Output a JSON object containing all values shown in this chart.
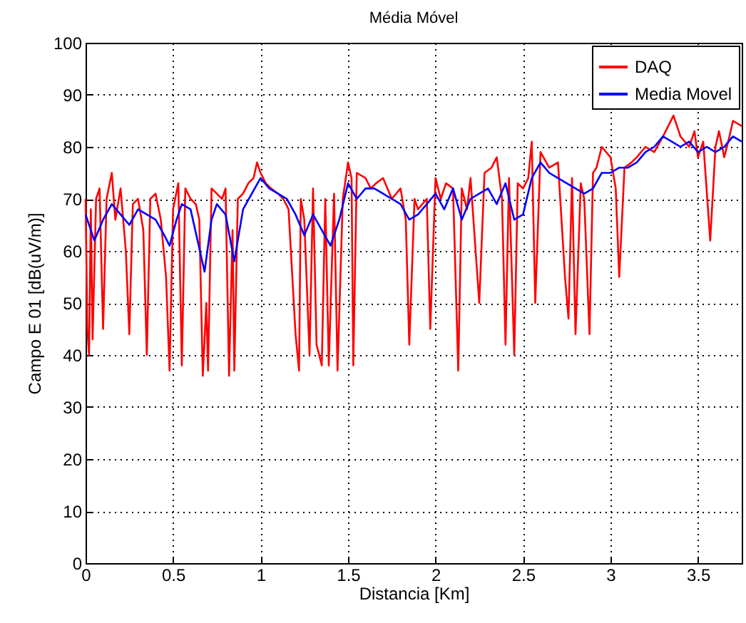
{
  "chart_data": {
    "type": "line",
    "title": "Média Móvel",
    "xlabel": "Distancia [Km]",
    "ylabel": "Campo E 01 [dB(uV/m)]",
    "xlim": [
      0,
      3.75
    ],
    "ylim": [
      0,
      100
    ],
    "xticks": [
      0,
      0.5,
      1,
      1.5,
      2,
      2.5,
      3,
      3.5
    ],
    "yticks": [
      0,
      10,
      20,
      30,
      40,
      50,
      60,
      70,
      80,
      90,
      100
    ],
    "grid": true,
    "legend": "top right",
    "line_style": "solid",
    "marker": "none",
    "series": [
      {
        "name": "DAQ",
        "color": "#ff0000",
        "x": [
          0,
          0.01,
          0.02,
          0.03,
          0.04,
          0.06,
          0.08,
          0.1,
          0.12,
          0.15,
          0.17,
          0.2,
          0.23,
          0.25,
          0.27,
          0.3,
          0.33,
          0.35,
          0.37,
          0.4,
          0.43,
          0.46,
          0.48,
          0.5,
          0.53,
          0.55,
          0.57,
          0.6,
          0.63,
          0.65,
          0.67,
          0.69,
          0.7,
          0.72,
          0.75,
          0.78,
          0.8,
          0.82,
          0.84,
          0.85,
          0.87,
          0.9,
          0.93,
          0.96,
          0.98,
          1.0,
          1.03,
          1.06,
          1.1,
          1.13,
          1.16,
          1.2,
          1.22,
          1.23,
          1.25,
          1.28,
          1.3,
          1.32,
          1.35,
          1.37,
          1.39,
          1.42,
          1.44,
          1.47,
          1.5,
          1.52,
          1.53,
          1.55,
          1.6,
          1.63,
          1.66,
          1.7,
          1.75,
          1.8,
          1.83,
          1.85,
          1.88,
          1.9,
          1.95,
          1.97,
          2.0,
          2.03,
          2.06,
          2.1,
          2.13,
          2.15,
          2.18,
          2.2,
          2.25,
          2.28,
          2.32,
          2.35,
          2.38,
          2.4,
          2.42,
          2.45,
          2.47,
          2.5,
          2.53,
          2.55,
          2.57,
          2.6,
          2.65,
          2.7,
          2.74,
          2.76,
          2.78,
          2.8,
          2.83,
          2.85,
          2.88,
          2.9,
          2.92,
          2.95,
          3.0,
          3.03,
          3.05,
          3.08,
          3.12,
          3.15,
          3.2,
          3.25,
          3.3,
          3.33,
          3.36,
          3.4,
          3.45,
          3.48,
          3.5,
          3.53,
          3.57,
          3.6,
          3.62,
          3.65,
          3.68,
          3.7,
          3.75
        ],
        "values": [
          70,
          45,
          40,
          68,
          43,
          70,
          72,
          45,
          70,
          75,
          66,
          72,
          60,
          44,
          69,
          70,
          64,
          40,
          70,
          71,
          66,
          55,
          37,
          68,
          73,
          38,
          72,
          70,
          69,
          66,
          36,
          50,
          37,
          72,
          71,
          70,
          72,
          36,
          64,
          37,
          70,
          71,
          73,
          74,
          77,
          75,
          73,
          72,
          71,
          70,
          68,
          44,
          37,
          70,
          66,
          40,
          72,
          42,
          38,
          70,
          38,
          71,
          37,
          70,
          77,
          74,
          38,
          75,
          74,
          72,
          73,
          74,
          70,
          72,
          66,
          42,
          70,
          68,
          70,
          45,
          74,
          70,
          73,
          72,
          37,
          72,
          68,
          74,
          50,
          75,
          76,
          78,
          70,
          42,
          74,
          40,
          73,
          72,
          74,
          81,
          50,
          79,
          76,
          77,
          55,
          47,
          74,
          44,
          73,
          70,
          44,
          75,
          76,
          80,
          78,
          72,
          55,
          76,
          77,
          78,
          80,
          79,
          82,
          84,
          86,
          82,
          80,
          83,
          78,
          81,
          62,
          80,
          83,
          78,
          82,
          85,
          84
        ]
      },
      {
        "name": "Media Movel",
        "color": "#0000ff",
        "x": [
          0,
          0.05,
          0.1,
          0.15,
          0.2,
          0.25,
          0.3,
          0.35,
          0.4,
          0.45,
          0.48,
          0.52,
          0.55,
          0.6,
          0.64,
          0.68,
          0.72,
          0.75,
          0.8,
          0.85,
          0.9,
          0.95,
          1.0,
          1.05,
          1.1,
          1.15,
          1.2,
          1.25,
          1.3,
          1.35,
          1.4,
          1.45,
          1.5,
          1.55,
          1.6,
          1.65,
          1.7,
          1.75,
          1.8,
          1.85,
          1.9,
          1.95,
          2.0,
          2.05,
          2.1,
          2.15,
          2.2,
          2.25,
          2.3,
          2.35,
          2.4,
          2.45,
          2.5,
          2.55,
          2.6,
          2.65,
          2.7,
          2.75,
          2.8,
          2.85,
          2.9,
          2.95,
          3.0,
          3.05,
          3.1,
          3.15,
          3.2,
          3.25,
          3.3,
          3.35,
          3.4,
          3.45,
          3.5,
          3.55,
          3.6,
          3.65,
          3.7,
          3.75
        ],
        "values": [
          67,
          62,
          66,
          69,
          67,
          65,
          68,
          67,
          66,
          63,
          61,
          66,
          69,
          68,
          62,
          56,
          66,
          69,
          67,
          58,
          68,
          71,
          74,
          72,
          71,
          70,
          67,
          63,
          67,
          64,
          61,
          66,
          73,
          70,
          72,
          72,
          71,
          70,
          69,
          66,
          67,
          69,
          71,
          68,
          72,
          66,
          70,
          71,
          72,
          69,
          73,
          66,
          67,
          74,
          77,
          75,
          74,
          73,
          72,
          71,
          72,
          75,
          75,
          76,
          76,
          77,
          79,
          80,
          82,
          81,
          80,
          81,
          79,
          80,
          79,
          80,
          82,
          81
        ]
      }
    ]
  }
}
